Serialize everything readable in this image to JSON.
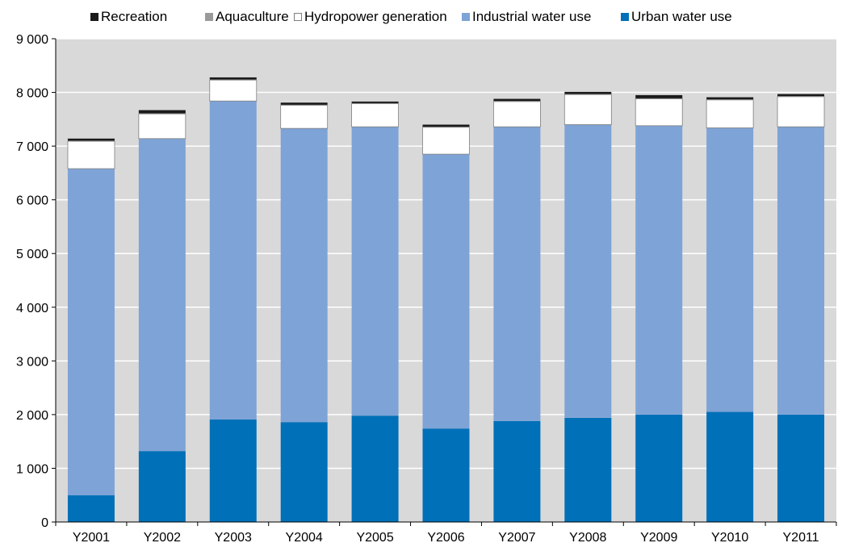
{
  "chart_data": {
    "type": "bar",
    "stacked": true,
    "categories": [
      "Y2001",
      "Y2002",
      "Y2003",
      "Y2004",
      "Y2005",
      "Y2006",
      "Y2007",
      "Y2008",
      "Y2009",
      "Y2010",
      "Y2011"
    ],
    "series": [
      {
        "name": "Urban water use",
        "color": "#0070b8",
        "values": [
          500,
          1320,
          1910,
          1860,
          1980,
          1740,
          1880,
          1940,
          2000,
          2050,
          2000
        ]
      },
      {
        "name": "Industrial water use",
        "color": "#7ea3d6",
        "values": [
          6080,
          5820,
          5930,
          5470,
          5380,
          5110,
          5480,
          5460,
          5380,
          5290,
          5360
        ]
      },
      {
        "name": "Hydropower generation",
        "color": "#ffffff",
        "values": [
          510,
          460,
          390,
          430,
          430,
          500,
          470,
          560,
          500,
          520,
          560
        ]
      },
      {
        "name": "Aquaculture",
        "color": "#9a9a9a",
        "values": [
          10,
          10,
          10,
          10,
          10,
          10,
          10,
          10,
          10,
          10,
          10
        ]
      },
      {
        "name": "Recreation",
        "color": "#1a1a1a",
        "values": [
          40,
          60,
          40,
          40,
          30,
          40,
          40,
          40,
          60,
          40,
          40
        ]
      }
    ],
    "legend_order": [
      "Recreation",
      "Aquaculture",
      "Hydropower generation",
      "Industrial water use",
      "Urban water use"
    ],
    "legend_position": "top",
    "ylim": [
      0,
      9000
    ],
    "yticks": [
      0,
      1000,
      2000,
      3000,
      4000,
      5000,
      6000,
      7000,
      8000,
      9000
    ],
    "ytick_labels": [
      "0",
      "1 000",
      "2 000",
      "3 000",
      "4 000",
      "5 000",
      "6 000",
      "7 000",
      "8 000",
      "9 000"
    ],
    "grid": true,
    "plot_background": "#d9d9d9",
    "title": "",
    "xlabel": "",
    "ylabel": ""
  }
}
